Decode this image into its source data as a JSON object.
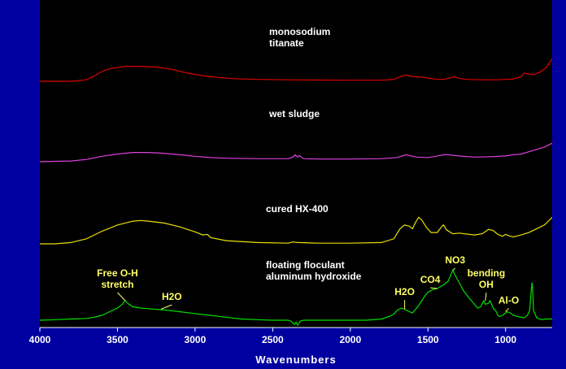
{
  "chart_data": {
    "type": "line",
    "xlabel": "Wavenumbers",
    "ylabel": "",
    "xlim": [
      4000,
      700
    ],
    "x_reversed": true,
    "ylim": [
      0,
      100
    ],
    "x_ticks": [
      4000,
      3500,
      3000,
      2500,
      2000,
      1500,
      1000
    ],
    "grid": false,
    "background_color": "#0000a0",
    "plot_background_color": "#000000",
    "series": [
      {
        "name": "monosodium titanate",
        "label_lines": [
          "monosodium",
          "titanate"
        ],
        "color": "#e00000",
        "points": [
          [
            4000,
            80
          ],
          [
            3800,
            80
          ],
          [
            3700,
            82
          ],
          [
            3650,
            87
          ],
          [
            3600,
            93
          ],
          [
            3550,
            97
          ],
          [
            3450,
            100
          ],
          [
            3350,
            100
          ],
          [
            3250,
            99
          ],
          [
            3150,
            96
          ],
          [
            3050,
            91
          ],
          [
            2950,
            87.5
          ],
          [
            2850,
            85
          ],
          [
            2750,
            83.5
          ],
          [
            2600,
            82.5
          ],
          [
            2400,
            82
          ],
          [
            2200,
            81.6
          ],
          [
            2000,
            81.4
          ],
          [
            1800,
            81.5
          ],
          [
            1720,
            82.5
          ],
          [
            1680,
            86
          ],
          [
            1640,
            88.5
          ],
          [
            1610,
            86.5
          ],
          [
            1570,
            86
          ],
          [
            1520,
            85
          ],
          [
            1460,
            83
          ],
          [
            1400,
            82.5
          ],
          [
            1350,
            85
          ],
          [
            1330,
            86
          ],
          [
            1300,
            84
          ],
          [
            1250,
            82.5
          ],
          [
            1150,
            82
          ],
          [
            1050,
            82
          ],
          [
            950,
            83
          ],
          [
            900,
            86
          ],
          [
            880,
            91
          ],
          [
            860,
            90
          ],
          [
            820,
            89
          ],
          [
            780,
            92
          ],
          [
            740,
            98
          ],
          [
            700,
            110
          ]
        ]
      },
      {
        "name": "wet sludge",
        "label_lines": [
          "wet sludge"
        ],
        "color": "#e040e0",
        "points": [
          [
            4000,
            56
          ],
          [
            3900,
            56.5
          ],
          [
            3800,
            57
          ],
          [
            3700,
            59
          ],
          [
            3600,
            63
          ],
          [
            3500,
            66
          ],
          [
            3400,
            68
          ],
          [
            3300,
            68
          ],
          [
            3200,
            67
          ],
          [
            3100,
            65
          ],
          [
            3000,
            63
          ],
          [
            2900,
            61.5
          ],
          [
            2800,
            60.5
          ],
          [
            2600,
            60
          ],
          [
            2400,
            60
          ],
          [
            2370,
            62
          ],
          [
            2355,
            65
          ],
          [
            2340,
            62
          ],
          [
            2330,
            64
          ],
          [
            2300,
            60
          ],
          [
            2200,
            59.5
          ],
          [
            2000,
            59.5
          ],
          [
            1800,
            60
          ],
          [
            1700,
            61.5
          ],
          [
            1640,
            65
          ],
          [
            1610,
            63.5
          ],
          [
            1570,
            62
          ],
          [
            1500,
            61.5
          ],
          [
            1450,
            63
          ],
          [
            1400,
            65
          ],
          [
            1370,
            65
          ],
          [
            1300,
            63.5
          ],
          [
            1200,
            62
          ],
          [
            1100,
            62.5
          ],
          [
            1000,
            63.5
          ],
          [
            950,
            65
          ],
          [
            900,
            66
          ],
          [
            850,
            69
          ],
          [
            800,
            72
          ],
          [
            750,
            75
          ],
          [
            700,
            80
          ]
        ]
      },
      {
        "name": "cured HX-400",
        "label_lines": [
          "cured HX-400"
        ],
        "color": "#e8e000",
        "points": [
          [
            4000,
            33
          ],
          [
            3900,
            33
          ],
          [
            3800,
            34
          ],
          [
            3700,
            37
          ],
          [
            3600,
            43
          ],
          [
            3500,
            48
          ],
          [
            3400,
            51
          ],
          [
            3350,
            51.5
          ],
          [
            3300,
            51
          ],
          [
            3200,
            49.5
          ],
          [
            3100,
            46.5
          ],
          [
            3000,
            42.5
          ],
          [
            2950,
            40
          ],
          [
            2920,
            40.5
          ],
          [
            2900,
            38
          ],
          [
            2800,
            35.5
          ],
          [
            2600,
            34
          ],
          [
            2400,
            33.5
          ],
          [
            2370,
            34.5
          ],
          [
            2340,
            34
          ],
          [
            2200,
            33.5
          ],
          [
            2000,
            33.5
          ],
          [
            1800,
            34
          ],
          [
            1720,
            37
          ],
          [
            1680,
            45
          ],
          [
            1650,
            48
          ],
          [
            1620,
            47
          ],
          [
            1600,
            45
          ],
          [
            1580,
            50
          ],
          [
            1560,
            54
          ],
          [
            1540,
            52
          ],
          [
            1510,
            46
          ],
          [
            1480,
            42
          ],
          [
            1440,
            42
          ],
          [
            1410,
            47
          ],
          [
            1400,
            48
          ],
          [
            1380,
            44
          ],
          [
            1340,
            41
          ],
          [
            1300,
            41.5
          ],
          [
            1200,
            40
          ],
          [
            1150,
            41
          ],
          [
            1110,
            44.5
          ],
          [
            1080,
            43.5
          ],
          [
            1050,
            40.5
          ],
          [
            1020,
            39
          ],
          [
            1000,
            40.5
          ],
          [
            970,
            39
          ],
          [
            950,
            38.5
          ],
          [
            900,
            40
          ],
          [
            850,
            42
          ],
          [
            800,
            45
          ],
          [
            750,
            48
          ],
          [
            700,
            54
          ]
        ]
      },
      {
        "name": "floating floculant aluminum hydroxide",
        "label_lines": [
          "floating floculant",
          "aluminum hydroxide"
        ],
        "color": "#00e000",
        "points": [
          [
            4000,
            4
          ],
          [
            3900,
            4.5
          ],
          [
            3800,
            5
          ],
          [
            3700,
            5.5
          ],
          [
            3650,
            6.5
          ],
          [
            3600,
            8
          ],
          [
            3550,
            11
          ],
          [
            3500,
            14
          ],
          [
            3470,
            17
          ],
          [
            3450,
            20
          ],
          [
            3430,
            17.5
          ],
          [
            3400,
            15
          ],
          [
            3350,
            14
          ],
          [
            3300,
            13.5
          ],
          [
            3200,
            12.5
          ],
          [
            3100,
            11
          ],
          [
            3000,
            9.5
          ],
          [
            2900,
            8
          ],
          [
            2800,
            6.5
          ],
          [
            2700,
            5
          ],
          [
            2600,
            4.5
          ],
          [
            2500,
            4
          ],
          [
            2450,
            4
          ],
          [
            2400,
            4
          ],
          [
            2380,
            3
          ],
          [
            2360,
            0.5
          ],
          [
            2350,
            2.5
          ],
          [
            2340,
            0
          ],
          [
            2320,
            3.5
          ],
          [
            2300,
            4
          ],
          [
            2200,
            4
          ],
          [
            2100,
            4
          ],
          [
            2000,
            4
          ],
          [
            1900,
            4
          ],
          [
            1800,
            5
          ],
          [
            1750,
            7
          ],
          [
            1720,
            9
          ],
          [
            1700,
            12
          ],
          [
            1670,
            14
          ],
          [
            1650,
            13
          ],
          [
            1620,
            11
          ],
          [
            1600,
            10
          ],
          [
            1560,
            16
          ],
          [
            1520,
            24
          ],
          [
            1500,
            27
          ],
          [
            1470,
            29
          ],
          [
            1440,
            30
          ],
          [
            1400,
            33
          ],
          [
            1370,
            36
          ],
          [
            1350,
            42
          ],
          [
            1340,
            45
          ],
          [
            1330,
            42
          ],
          [
            1300,
            35
          ],
          [
            1270,
            28
          ],
          [
            1240,
            23
          ],
          [
            1200,
            17
          ],
          [
            1180,
            14
          ],
          [
            1160,
            15
          ],
          [
            1150,
            18
          ],
          [
            1140,
            20
          ],
          [
            1130,
            17
          ],
          [
            1110,
            18
          ],
          [
            1100,
            20
          ],
          [
            1080,
            14
          ],
          [
            1060,
            11
          ],
          [
            1050,
            8
          ],
          [
            1040,
            7
          ],
          [
            1020,
            8
          ],
          [
            1000,
            10
          ],
          [
            990,
            11
          ],
          [
            970,
            10
          ],
          [
            950,
            8
          ],
          [
            920,
            7
          ],
          [
            880,
            6
          ],
          [
            860,
            8
          ],
          [
            845,
            12
          ],
          [
            835,
            28
          ],
          [
            830,
            35
          ],
          [
            825,
            28
          ],
          [
            820,
            12
          ],
          [
            800,
            6
          ],
          [
            780,
            5
          ],
          [
            760,
            4.5
          ],
          [
            740,
            5
          ],
          [
            700,
            5
          ]
        ]
      }
    ],
    "annotations": [
      {
        "lines": [
          "Free O-H",
          "stretch"
        ],
        "color": "#ffff66",
        "x": 3450,
        "y": 20,
        "label_x": 3500,
        "label_y": 28
      },
      {
        "lines": [
          "H2O"
        ],
        "color": "#ffff66",
        "x": 3220,
        "y": 13,
        "label_x": 3150,
        "label_y": 18
      },
      {
        "lines": [
          "H2O"
        ],
        "color": "#ffff66",
        "x": 1650,
        "y": 13,
        "label_x": 1650,
        "label_y": 22
      },
      {
        "lines": [
          "CO4"
        ],
        "color": "#ffff66",
        "x": 1440,
        "y": 30,
        "label_x": 1485,
        "label_y": 32
      },
      {
        "lines": [
          "NO3"
        ],
        "color": "#ffff66",
        "x": 1340,
        "y": 45,
        "label_x": 1325,
        "label_y": 48
      },
      {
        "lines": [
          "bending",
          "OH"
        ],
        "color": "#ffff66",
        "x": 1130,
        "y": 20,
        "label_x": 1125,
        "label_y": 28
      },
      {
        "lines": [
          "Al-O"
        ],
        "color": "#ffff66",
        "x": 1000,
        "y": 11,
        "label_x": 980,
        "label_y": 15
      }
    ]
  }
}
